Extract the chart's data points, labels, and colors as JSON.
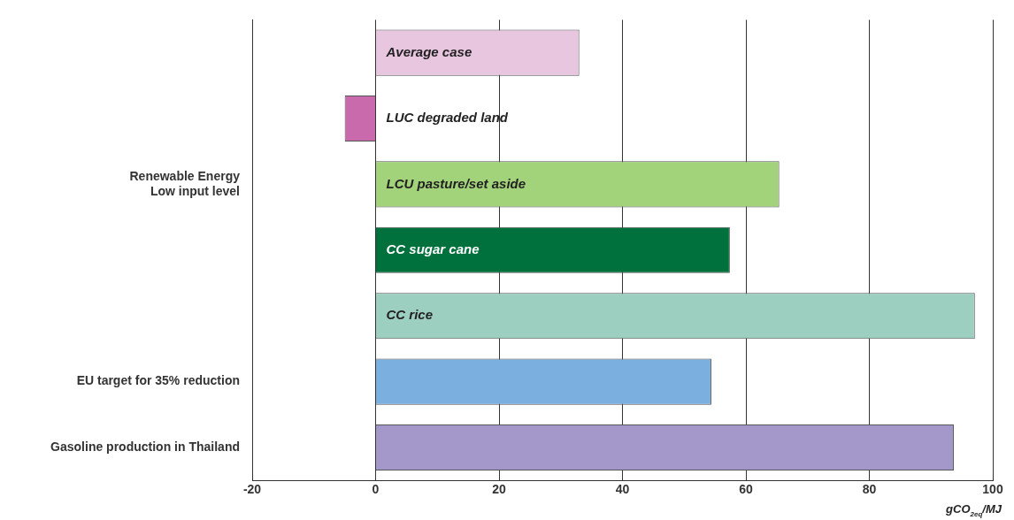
{
  "chart_data": {
    "type": "bar",
    "orientation": "horizontal",
    "xlabel": "gCO$_{2eq}$/MJ",
    "categories": [
      null,
      null,
      "Renewable Energy\nLow input level",
      null,
      null,
      "EU target for 35% reduction",
      "Gasoline production in Thailand"
    ],
    "series": [
      {
        "name": "Average case",
        "color": "#e8c6e0",
        "values": [
          33,
          null,
          null,
          null,
          null,
          null,
          null
        ]
      },
      {
        "name": "LUC degraded land",
        "color": "#c86aac",
        "values": [
          null,
          -5,
          null,
          null,
          null,
          null,
          null
        ]
      },
      {
        "name": "LCU pasture/set aside",
        "color": "#a2d27a",
        "values": [
          null,
          null,
          65.4,
          null,
          null,
          null,
          null
        ]
      },
      {
        "name": "CC sugar cane",
        "color": "#00703c",
        "values": [
          null,
          null,
          null,
          57.4,
          null,
          null,
          null
        ]
      },
      {
        "name": "CC rice",
        "color": "#9ccfc0",
        "values": [
          null,
          null,
          null,
          null,
          97.1,
          null,
          null
        ]
      },
      {
        "color": "#7bafdf",
        "values": [
          null,
          null,
          null,
          null,
          null,
          54.4,
          null
        ]
      },
      {
        "color": "#a497c9",
        "values": [
          null,
          null,
          null,
          null,
          null,
          null,
          93.7
        ]
      }
    ],
    "xlim": [
      -20,
      100
    ],
    "xticks": [
      -20,
      0,
      20,
      40,
      60,
      80,
      100
    ],
    "grid": "x",
    "legend": false
  }
}
